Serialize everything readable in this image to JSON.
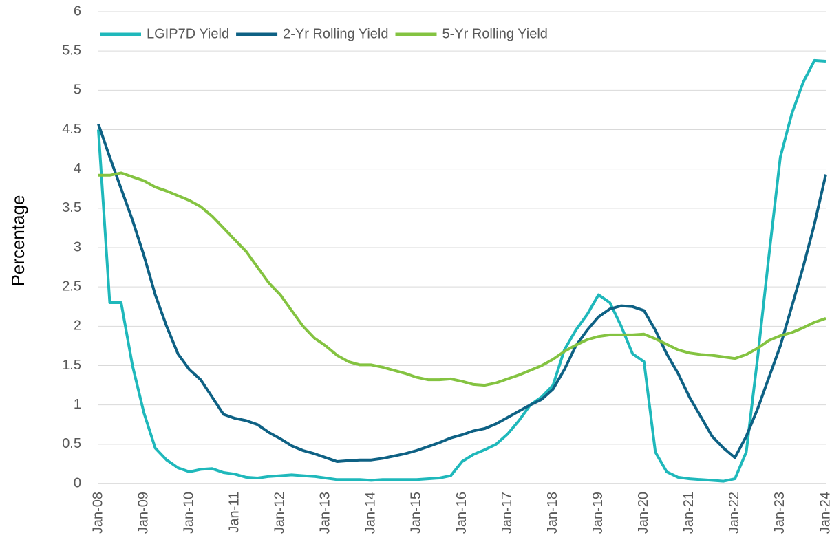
{
  "chart_data": {
    "type": "line",
    "y_label": "Percentage",
    "categories": [
      "Jan-08",
      null,
      null,
      null,
      "Jan-09",
      null,
      null,
      null,
      "Jan-10",
      null,
      null,
      null,
      "Jan-11",
      null,
      null,
      null,
      "Jan-12",
      null,
      null,
      null,
      "Jan-13",
      null,
      null,
      null,
      "Jan-14",
      null,
      null,
      null,
      "Jan-15",
      null,
      null,
      null,
      "Jan-16",
      null,
      null,
      null,
      "Jan-17",
      null,
      null,
      null,
      "Jan-18",
      null,
      null,
      null,
      "Jan-19",
      null,
      null,
      null,
      "Jan-20",
      null,
      null,
      null,
      "Jan-21",
      null,
      null,
      null,
      "Jan-22",
      null,
      null,
      null,
      "Jan-23",
      null,
      null,
      null,
      "Jan-24"
    ],
    "series": [
      {
        "name": "LGIP7D Yield",
        "color": "#1fb8bb",
        "values": [
          4.5,
          2.3,
          2.3,
          1.5,
          0.9,
          0.45,
          0.3,
          0.2,
          0.15,
          0.18,
          0.19,
          0.14,
          0.12,
          0.08,
          0.07,
          0.09,
          0.1,
          0.11,
          0.1,
          0.09,
          0.07,
          0.05,
          0.05,
          0.05,
          0.04,
          0.05,
          0.05,
          0.05,
          0.05,
          0.06,
          0.07,
          0.1,
          0.28,
          0.37,
          0.43,
          0.5,
          0.63,
          0.8,
          1.0,
          1.1,
          1.25,
          1.7,
          1.95,
          2.15,
          2.4,
          2.3,
          2.0,
          1.65,
          1.55,
          0.4,
          0.15,
          0.08,
          0.06,
          0.05,
          0.04,
          0.03,
          0.06,
          0.4,
          1.6,
          2.9,
          4.15,
          4.7,
          5.1,
          5.38,
          5.37
        ]
      },
      {
        "name": "2-Yr Rolling Yield",
        "color": "#0e6184",
        "values": [
          4.57,
          4.15,
          3.75,
          3.35,
          2.9,
          2.4,
          2.0,
          1.65,
          1.45,
          1.32,
          1.1,
          0.88,
          0.83,
          0.8,
          0.75,
          0.65,
          0.57,
          0.48,
          0.42,
          0.38,
          0.33,
          0.28,
          0.29,
          0.3,
          0.3,
          0.32,
          0.35,
          0.38,
          0.42,
          0.47,
          0.52,
          0.58,
          0.62,
          0.67,
          0.7,
          0.76,
          0.84,
          0.92,
          1.0,
          1.07,
          1.2,
          1.45,
          1.75,
          1.95,
          2.12,
          2.22,
          2.26,
          2.25,
          2.2,
          1.95,
          1.65,
          1.4,
          1.1,
          0.85,
          0.6,
          0.45,
          0.33,
          0.6,
          0.95,
          1.35,
          1.75,
          2.25,
          2.75,
          3.3,
          3.93
        ]
      },
      {
        "name": "5-Yr Rolling Yield",
        "color": "#84c341",
        "values": [
          3.92,
          3.92,
          3.95,
          3.9,
          3.85,
          3.77,
          3.72,
          3.66,
          3.6,
          3.52,
          3.4,
          3.25,
          3.1,
          2.95,
          2.75,
          2.55,
          2.4,
          2.2,
          2.0,
          1.85,
          1.75,
          1.63,
          1.55,
          1.51,
          1.51,
          1.48,
          1.44,
          1.4,
          1.35,
          1.32,
          1.32,
          1.33,
          1.3,
          1.26,
          1.25,
          1.28,
          1.33,
          1.38,
          1.44,
          1.5,
          1.58,
          1.68,
          1.76,
          1.83,
          1.87,
          1.89,
          1.89,
          1.89,
          1.9,
          1.84,
          1.77,
          1.7,
          1.66,
          1.64,
          1.63,
          1.61,
          1.59,
          1.64,
          1.72,
          1.82,
          1.88,
          1.92,
          1.98,
          2.05,
          2.1
        ]
      }
    ],
    "ylim": [
      0,
      6
    ],
    "yticks": [
      0,
      0.5,
      1,
      1.5,
      2,
      2.5,
      3,
      3.5,
      4,
      4.5,
      5,
      5.5,
      6
    ],
    "grid": true,
    "legend": "top-left"
  }
}
